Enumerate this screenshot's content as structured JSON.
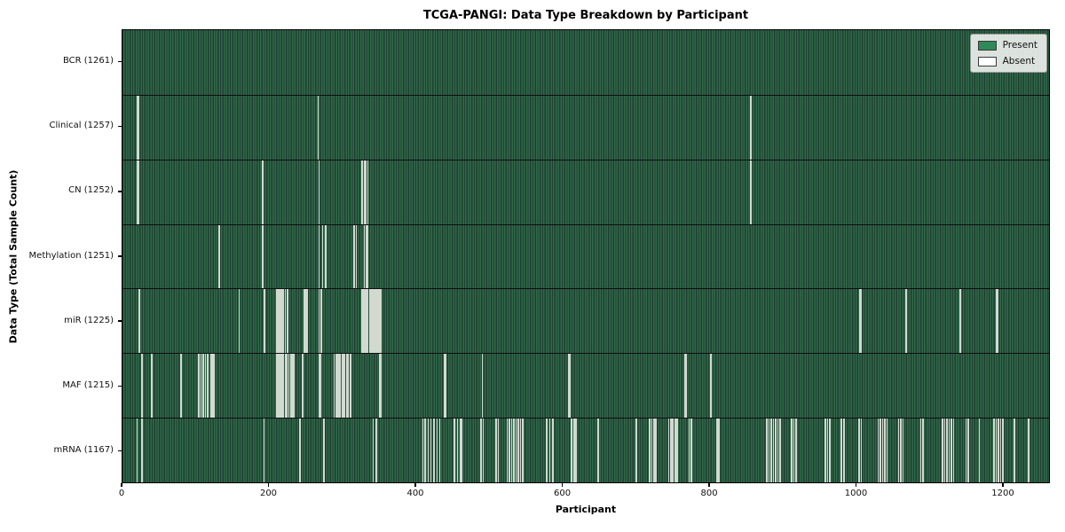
{
  "title": "TCGA-PANGI: Data Type Breakdown by Participant",
  "axes": {
    "xlabel": "Participant",
    "ylabel": "Data Type (Total Sample Count)",
    "x_ticks": [
      0,
      200,
      400,
      600,
      800,
      1000,
      1200
    ],
    "x_max": 1264
  },
  "legend": {
    "present_label": "Present",
    "absent_label": "Absent"
  },
  "colors": {
    "present": "#2e8b57",
    "absent": "#ffffff",
    "bar_edge": "#1d4030",
    "absent_line": "#d2d9d1"
  },
  "chart_data": {
    "type": "heatmap",
    "title": "TCGA-PANGI: Data Type Breakdown by Participant",
    "xlabel": "Participant",
    "ylabel": "Data Type (Total Sample Count)",
    "legend_entries": [
      "Present",
      "Absent"
    ],
    "legend_position": "upper right",
    "x_range": [
      0,
      1264
    ],
    "total_participants": 1261,
    "rows": [
      {
        "label": "BCR (1261)",
        "data_type": "BCR",
        "sample_count": 1261,
        "absent_participants": []
      },
      {
        "label": "Clinical (1257)",
        "data_type": "Clinical",
        "sample_count": 1257,
        "absent_participants": [
          19,
          21,
          266,
          856
        ]
      },
      {
        "label": "CN (1252)",
        "data_type": "CN",
        "sample_count": 1252,
        "absent_participants": [
          19,
          21,
          190,
          267,
          326,
          329,
          331,
          334,
          856
        ]
      },
      {
        "label": "Methylation (1251)",
        "data_type": "Methylation",
        "sample_count": 1251,
        "absent_participants": [
          131,
          190,
          267,
          272,
          276,
          315,
          318,
          329,
          332,
          334
        ]
      },
      {
        "label": "miR (1225)",
        "data_type": "miR",
        "sample_count": 1225,
        "absent_participants": [
          22,
          158,
          193,
          209,
          211,
          213,
          215,
          217,
          219,
          221,
          224,
          247,
          249,
          251,
          267,
          270,
          326,
          328,
          330,
          332,
          334,
          336,
          338,
          340,
          342,
          344,
          346,
          348,
          350,
          352,
          1005,
          1007,
          1068,
          1142,
          1191,
          1193
        ]
      },
      {
        "label": "MAF (1215)",
        "data_type": "MAF",
        "sample_count": 1215,
        "absent_participants": [
          26,
          39,
          79,
          103,
          106,
          109,
          112,
          115,
          120,
          122,
          124,
          209,
          211,
          213,
          215,
          217,
          219,
          221,
          223,
          226,
          229,
          231,
          233,
          245,
          267,
          269,
          288,
          290,
          292,
          294,
          296,
          299,
          302,
          305,
          307,
          310,
          350,
          352,
          438,
          440,
          490,
          608,
          610,
          766,
          768,
          802
        ]
      },
      {
        "label": "mRNA (1167)",
        "data_type": "mRNA",
        "sample_count": 1167,
        "absent_participants": [
          19,
          26,
          192,
          241,
          274,
          341,
          345,
          409,
          412,
          416,
          420,
          424,
          428,
          432,
          452,
          456,
          460,
          462,
          488,
          491,
          509,
          512,
          524,
          527,
          530,
          533,
          536,
          539,
          542,
          545,
          578,
          582,
          586,
          612,
          615,
          618,
          648,
          700,
          718,
          721,
          724,
          727,
          744,
          747,
          750,
          753,
          756,
          772,
          775,
          810,
          813,
          878,
          881,
          884,
          887,
          890,
          893,
          896,
          912,
          915,
          918,
          958,
          961,
          964,
          980,
          983,
          1004,
          1007,
          1030,
          1033,
          1036,
          1039,
          1042,
          1058,
          1061,
          1064,
          1088,
          1091,
          1118,
          1121,
          1124,
          1127,
          1130,
          1133,
          1150,
          1153,
          1168,
          1188,
          1191,
          1194,
          1197,
          1200,
          1216,
          1235
        ]
      }
    ]
  }
}
